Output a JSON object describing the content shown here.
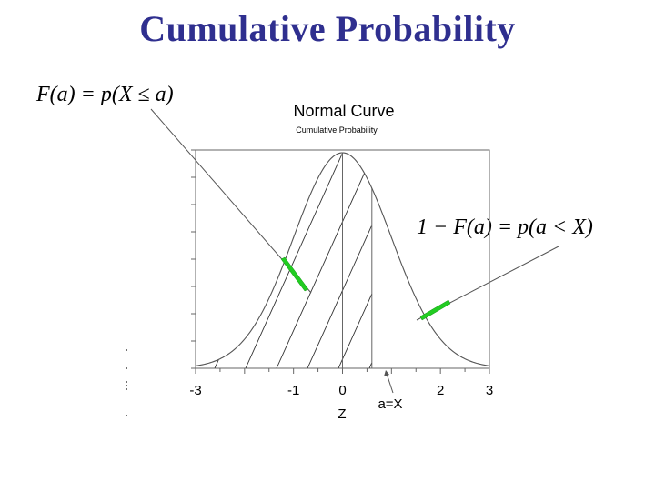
{
  "slide": {
    "title": "Cumulative Probability"
  },
  "formulas": {
    "left": "F(a) = p(X ≤ a)",
    "right": "1 − F(a) = p(a < X)"
  },
  "plot": {
    "title": "Normal Curve",
    "subtitle": "Cumulative Probability",
    "xlabel": "Z",
    "marker_label": "a=X",
    "marker_value": 0.6,
    "xticks": [
      "-3",
      "-1",
      "0",
      "2",
      "3"
    ],
    "xtick_values": [
      -3,
      -1,
      0,
      2,
      3
    ],
    "xlim": [
      -3,
      3
    ]
  },
  "colors": {
    "title": "#2f2f8f",
    "arrowhead": "#22cc22",
    "line": "#555555"
  }
}
